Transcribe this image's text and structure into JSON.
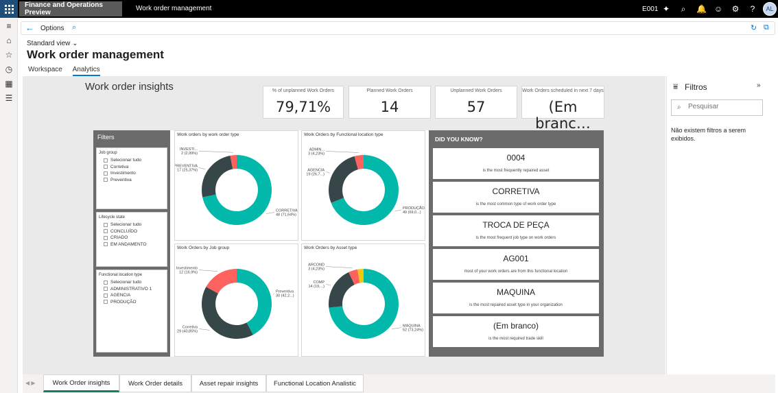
{
  "topbar": {
    "app_name": "Finance and Operations Preview",
    "page_name": "Work order management",
    "company": "E001",
    "avatar_initials": "AL"
  },
  "actionbar": {
    "options_label": "Options"
  },
  "header": {
    "view_label": "Standard view",
    "title": "Work order management",
    "tabs": [
      {
        "label": "Workspace",
        "active": false
      },
      {
        "label": "Analytics",
        "active": true
      }
    ]
  },
  "report": {
    "title": "Work order insights",
    "kpis": [
      {
        "label": "% of unplanned Work Orders",
        "value": "79,71%"
      },
      {
        "label": "Planned Work Orders",
        "value": "14"
      },
      {
        "label": "Unplanned Work Orders",
        "value": "57"
      },
      {
        "label": "Work Orders scheduled in next 7 days",
        "value": "(Em branc…"
      }
    ],
    "filters": {
      "title": "Filters",
      "slicers": [
        {
          "title": "Job group",
          "items": [
            "Selecionar tudo",
            "Corretiva",
            "Investimento",
            "Preventiva"
          ]
        },
        {
          "title": "Lifecycle state",
          "items": [
            "Selecionar tudo",
            "CONCLUÍDO",
            "CRIADO",
            "EM ANDAMENTO"
          ]
        },
        {
          "title": "Functional location type",
          "items": [
            "Selecionar tudo",
            "ADMINISTRATIVO 1",
            "AGENCIA",
            "PRODUÇÃO"
          ]
        }
      ]
    },
    "did_you_know": {
      "title": "DID YOU KNOW?",
      "cards": [
        {
          "value": "0004",
          "desc": "is the most frequently repaired asset"
        },
        {
          "value": "CORRETIVA",
          "desc": "is the most common type of work order type"
        },
        {
          "value": "TROCA DE PEÇA",
          "desc": "is the most frequent job type on work orders"
        },
        {
          "value": "AG001",
          "desc": "most of your work orders are from this functional location"
        },
        {
          "value": "MAQUINA",
          "desc": "is the most repaired asset type in your organization"
        },
        {
          "value": "(Em branco)",
          "desc": "is the most required trade skill"
        }
      ]
    }
  },
  "chart_data": [
    {
      "type": "pie",
      "title": "Work orders by work order type",
      "slices": [
        {
          "name": "CORRETIVA",
          "label_value": "48 (71,64%)",
          "value": 48,
          "color": "#01b8aa"
        },
        {
          "name": "PREVENTIVA",
          "label_value": "17 (25,37%)",
          "value": 17,
          "color": "#374649"
        },
        {
          "name": "INVESTI...",
          "label_value": "2 (2,99%)",
          "value": 2,
          "color": "#fd625e"
        }
      ]
    },
    {
      "type": "pie",
      "title": "Work Orders by Functional location type",
      "slices": [
        {
          "name": "PRODUÇÃO",
          "label_value": "49 (69,0...)",
          "value": 49,
          "color": "#01b8aa"
        },
        {
          "name": "AGENCIA",
          "label_value": "19 (26,7...)",
          "value": 19,
          "color": "#374649"
        },
        {
          "name": "ADMIN...",
          "label_value": "3 (4,23%)",
          "value": 3,
          "color": "#fd625e"
        }
      ]
    },
    {
      "type": "pie",
      "title": "Work Orders by Job group",
      "slices": [
        {
          "name": "Preventiva",
          "label_value": "30 (42,2...)",
          "value": 30,
          "color": "#01b8aa"
        },
        {
          "name": "Corretiva",
          "label_value": "29 (40,85%)",
          "value": 29,
          "color": "#374649"
        },
        {
          "name": "Investimento",
          "label_value": "12 (16,9%)",
          "value": 12,
          "color": "#fd625e"
        }
      ]
    },
    {
      "type": "pie",
      "title": "Work Orders by Asset type",
      "slices": [
        {
          "name": "MAQUINA",
          "label_value": "52 (73,24%)",
          "value": 52,
          "color": "#01b8aa"
        },
        {
          "name": "COMP",
          "label_value": "14 (19,...)",
          "value": 14,
          "color": "#374649"
        },
        {
          "name": "ARCOND",
          "label_value": "3 (4,23%)",
          "value": 3,
          "color": "#fd625e"
        },
        {
          "name": "",
          "label_value": "",
          "value": 2,
          "color": "#f2c80f"
        }
      ]
    }
  ],
  "filter_pane": {
    "title": "Filtros",
    "search_placeholder": "Pesquisar",
    "empty_text": "Não existem filtros a serem exibidos."
  },
  "page_tabs": [
    {
      "label": "Work Order insights",
      "active": true
    },
    {
      "label": "Work Order details",
      "active": false
    },
    {
      "label": "Asset repair insights",
      "active": false
    },
    {
      "label": "Functional Location Analistic",
      "active": false
    }
  ]
}
